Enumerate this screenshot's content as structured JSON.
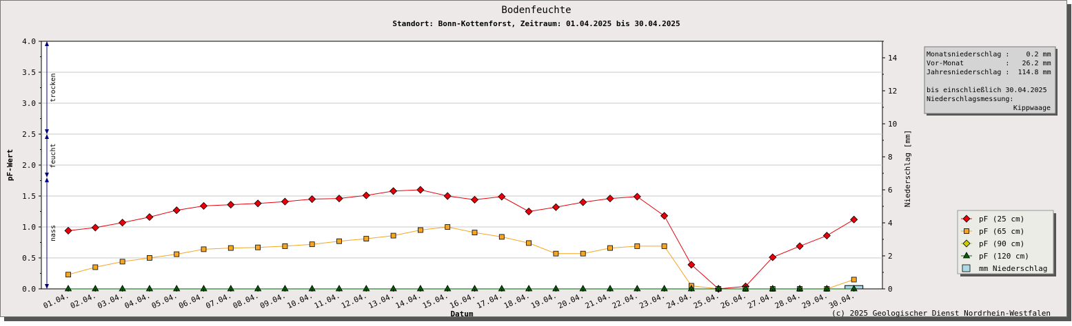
{
  "chart_data": {
    "type": "line",
    "title": "Bodenfeuchte",
    "subtitle": "Standort: Bonn-Kottenforst, Zeitraum: 01.04.2025 bis 30.04.2025",
    "xlabel": "Datum",
    "ylabel": "pF-Wert",
    "y2label": "Niederschlag [mm]",
    "categories": [
      "01.04.",
      "02.04.",
      "03.04.",
      "04.04.",
      "05.04.",
      "06.04.",
      "07.04.",
      "08.04.",
      "09.04.",
      "10.04.",
      "11.04.",
      "12.04.",
      "13.04.",
      "14.04.",
      "15.04.",
      "16.04.",
      "17.04.",
      "18.04.",
      "19.04.",
      "20.04.",
      "21.04.",
      "22.04.",
      "23.04.",
      "24.04.",
      "25.04.",
      "26.04.",
      "27.04.",
      "28.04.",
      "29.04.",
      "30.04."
    ],
    "ylim": [
      0,
      4.0
    ],
    "yticks": [
      "0.0",
      "0.5",
      "1.0",
      "1.5",
      "2.0",
      "2.5",
      "3.0",
      "3.5",
      "4.0"
    ],
    "y2lim": [
      0,
      15
    ],
    "y2ticks": [
      "0",
      "2",
      "4",
      "6",
      "8",
      "10",
      "12",
      "14"
    ],
    "grid": true,
    "zones": [
      {
        "label": "trocken",
        "from": 2.5,
        "to": 4.0
      },
      {
        "label": "feucht",
        "from": 1.8,
        "to": 2.5
      },
      {
        "label": "nass",
        "from": 0.0,
        "to": 1.8
      }
    ],
    "series": [
      {
        "name": "pF (25 cm)",
        "color": "#e8000b",
        "marker": "diamond",
        "values": [
          0.94,
          0.99,
          1.07,
          1.16,
          1.27,
          1.34,
          1.36,
          1.38,
          1.41,
          1.45,
          1.46,
          1.51,
          1.58,
          1.6,
          1.5,
          1.44,
          1.49,
          1.25,
          1.32,
          1.4,
          1.46,
          1.49,
          1.18,
          0.39,
          0.0,
          0.04,
          0.51,
          0.69,
          0.86,
          1.12
        ]
      },
      {
        "name": "pF (65 cm)",
        "color": "#f5a623",
        "marker": "square",
        "values": [
          0.23,
          0.35,
          0.44,
          0.5,
          0.56,
          0.64,
          0.66,
          0.67,
          0.69,
          0.72,
          0.77,
          0.81,
          0.86,
          0.95,
          1.0,
          0.91,
          0.84,
          0.74,
          0.57,
          0.57,
          0.66,
          0.69,
          0.69,
          0.05,
          0.0,
          0.0,
          0.0,
          0.0,
          0.0,
          0.15
        ]
      },
      {
        "name": "pF (90 cm)",
        "color": "#cccc00",
        "marker": "diamond",
        "values": [
          0,
          0,
          0,
          0,
          0,
          0,
          0,
          0,
          0,
          0,
          0,
          0,
          0,
          0,
          0,
          0,
          0,
          0,
          0,
          0,
          0,
          0,
          0,
          0,
          0,
          0,
          0,
          0,
          0,
          0
        ]
      },
      {
        "name": "pF (120 cm)",
        "color": "#006400",
        "marker": "triangle",
        "values": [
          0,
          0,
          0,
          0,
          0,
          0,
          0,
          0,
          0,
          0,
          0,
          0,
          0,
          0,
          0,
          0,
          0,
          0,
          0,
          0,
          0,
          0,
          0,
          0,
          0,
          0,
          0,
          0,
          0,
          0
        ]
      }
    ],
    "precipitation": {
      "name": "mm  Niederschlag",
      "color": "#add8e6",
      "values": [
        0,
        0,
        0,
        0,
        0,
        0,
        0,
        0,
        0,
        0,
        0,
        0,
        0,
        0,
        0,
        0,
        0,
        0,
        0,
        0,
        0,
        0,
        0,
        0,
        0,
        0,
        0,
        0,
        0,
        0.2
      ]
    },
    "legend_position": "bottom-right",
    "info_box": {
      "lines": [
        "Monatsniederschlag :    0.2 mm",
        "Vor-Monat          :   26.2 mm",
        "Jahresniederschlag :  114.8 mm",
        "",
        "bis einschließlich 30.04.2025",
        "Niederschlagsmessung:"
      ],
      "last_line": "Kippwaage"
    },
    "copyright": "(c) 2025 Geologischer Dienst Nordrhein-Westfalen"
  }
}
